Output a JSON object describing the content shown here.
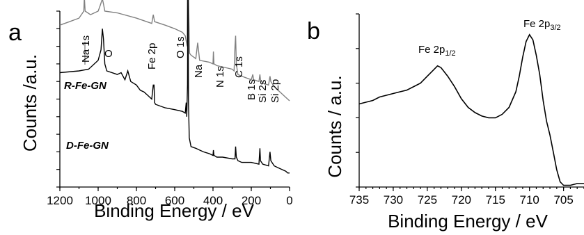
{
  "chart_data": [
    {
      "type": "line",
      "panel": "a",
      "xlabel": "Binding Energy / eV",
      "ylabel": "Counts /a.u.",
      "xlim": [
        1200,
        0
      ],
      "x_reversed": true,
      "x_ticks": [
        "1200",
        "1000",
        "800",
        "600",
        "400",
        "200",
        "0"
      ],
      "grid": false,
      "y_tick_labels": false,
      "series": [
        {
          "name": "R-Fe-GN",
          "color": "#808080",
          "x": [
            1200,
            1150,
            1100,
            1075,
            1072,
            1068,
            1040,
            1000,
            990,
            978,
            972,
            965,
            900,
            800,
            720,
            712,
            705,
            650,
            600,
            560,
            545,
            535,
            531,
            528,
            522,
            515,
            490,
            480,
            470,
            420,
            400,
            398,
            395,
            380,
            300,
            290,
            285,
            282,
            278,
            270,
            250,
            200,
            192,
            188,
            160,
            155,
            152,
            140,
            110,
            102,
            98,
            80,
            60,
            40,
            20,
            10,
            0
          ],
          "y": [
            92,
            94,
            96,
            100,
            108,
            100,
            98,
            100,
            103,
            107,
            104,
            100,
            99,
            96,
            93,
            98,
            94,
            92,
            90,
            88,
            86,
            80,
            175,
            110,
            76,
            75,
            73,
            82,
            72,
            71,
            70,
            77,
            70,
            69,
            67,
            66,
            80,
            86,
            70,
            64,
            63,
            61,
            64,
            61,
            60,
            64,
            61,
            59,
            58,
            63,
            60,
            57,
            55,
            53,
            51,
            50,
            49
          ]
        },
        {
          "name": "D-Fe-GN",
          "color": "#000000",
          "x": [
            1200,
            1100,
            1050,
            1000,
            985,
            978,
            972,
            965,
            955,
            900,
            880,
            860,
            845,
            830,
            800,
            780,
            760,
            740,
            720,
            712,
            708,
            705,
            700,
            650,
            600,
            560,
            545,
            540,
            537,
            533,
            531,
            528,
            524,
            515,
            490,
            470,
            450,
            420,
            400,
            398,
            395,
            380,
            350,
            300,
            285,
            282,
            278,
            270,
            250,
            200,
            160,
            155,
            152,
            140,
            110,
            102,
            98,
            80,
            60,
            40,
            20,
            10,
            0
          ],
          "y": [
            65,
            66,
            67,
            72,
            78,
            90,
            84,
            70,
            66,
            64,
            65,
            61,
            66,
            60,
            58,
            55,
            54,
            52,
            50,
            58,
            58,
            48,
            47,
            45,
            44,
            43,
            42,
            48,
            40,
            58,
            125,
            48,
            28,
            23,
            22,
            21,
            20,
            19,
            18,
            21,
            18,
            17,
            17,
            16,
            16,
            23,
            17,
            15,
            14,
            14,
            13,
            22,
            15,
            13,
            12,
            20,
            15,
            12,
            11,
            10,
            9,
            8,
            8
          ]
        }
      ],
      "annotations": [
        "Na 1s",
        "O",
        "Fe 2p",
        "O 1s",
        "Na",
        "N 1s",
        "C 1s",
        "B 1s",
        "Si 2s",
        "Si 2p"
      ],
      "sample_labels": [
        "R-Fe-GN",
        "D-Fe-GN"
      ]
    },
    {
      "type": "line",
      "panel": "b",
      "xlabel": "Binding Energy / eV",
      "ylabel": "Counts / a.u.",
      "xlim": [
        735,
        702
      ],
      "x_reversed": true,
      "x_ticks": [
        "735",
        "730",
        "725",
        "720",
        "715",
        "710",
        "705"
      ],
      "grid": false,
      "y_tick_labels": false,
      "series": [
        {
          "name": "",
          "color": "#000000",
          "x": [
            735,
            734,
            733,
            732,
            731,
            730,
            729,
            728,
            727,
            726,
            725,
            724,
            723.5,
            723,
            722,
            721,
            720,
            719,
            718,
            717,
            716,
            715,
            714,
            713,
            712,
            711.5,
            711,
            710.5,
            710,
            709.5,
            709,
            708.5,
            708,
            707.5,
            707,
            706.5,
            706,
            705.5,
            705,
            704.5,
            704,
            703,
            702
          ],
          "y": [
            48,
            49,
            50,
            52,
            53,
            54,
            55,
            56,
            58,
            60,
            64,
            68,
            70,
            69,
            64,
            58,
            51,
            46,
            43,
            41,
            40,
            40,
            42,
            46,
            55,
            64,
            75,
            84,
            88,
            85,
            76,
            65,
            50,
            38,
            30,
            20,
            10,
            3,
            1,
            1,
            1,
            2,
            2
          ]
        }
      ],
      "annotations": [
        "Fe 2p1/2",
        "Fe 2p3/2"
      ]
    }
  ],
  "panel_a": {
    "letter": "a",
    "ylabel": "Counts /a.u.",
    "xlabel": "Binding Energy / eV",
    "ticks": [
      "1200",
      "1000",
      "800",
      "600",
      "400",
      "200",
      "0"
    ],
    "peaks": {
      "na1s": "Na 1s",
      "o": "O",
      "fe2p": "Fe 2p",
      "o1s": "O 1s",
      "na": "Na",
      "n1s": "N 1s",
      "c1s": "C 1s",
      "b1s": "B 1s",
      "si2s": "Si 2s",
      "si2p": "Si 2p"
    },
    "sample_r": "R-Fe-GN",
    "sample_d": "D-Fe-GN"
  },
  "panel_b": {
    "letter": "b",
    "ylabel": "Counts / a.u.",
    "xlabel": "Binding Energy / eV",
    "ticks": [
      "735",
      "730",
      "725",
      "720",
      "715",
      "710",
      "705"
    ],
    "peak_half": {
      "base": "Fe 2p",
      "sub": "1/2"
    },
    "peak_three_half": {
      "base": "Fe 2p",
      "sub": "3/2"
    }
  }
}
